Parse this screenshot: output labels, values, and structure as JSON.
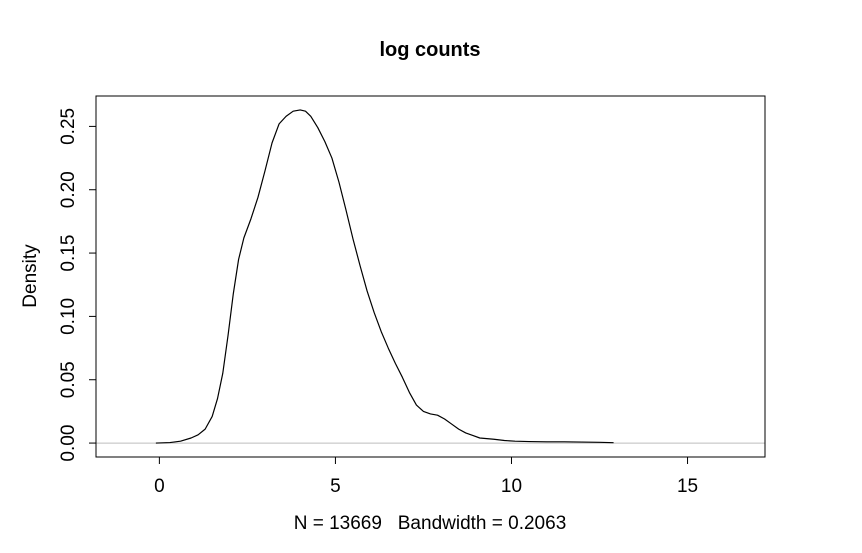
{
  "chart_data": {
    "type": "line",
    "title": "log counts",
    "xlabel": "N = 13669   Bandwidth = 0.2063",
    "ylabel": "Density",
    "xlim": [
      -1.8,
      17.2
    ],
    "ylim": [
      -0.011,
      0.274
    ],
    "x_ticks": [
      0,
      5,
      10,
      15
    ],
    "x_tick_labels": [
      "0",
      "5",
      "10",
      "15"
    ],
    "y_ticks": [
      0.0,
      0.05,
      0.1,
      0.15,
      0.2,
      0.25
    ],
    "y_tick_labels": [
      "0.00",
      "0.05",
      "0.10",
      "0.15",
      "0.20",
      "0.25"
    ],
    "zero_line": {
      "y": 0,
      "color": "#bebebe"
    },
    "grid": false,
    "legend": "none",
    "colors": {
      "line": "#000000",
      "zero_line": "#bebebe",
      "axis": "#000000"
    },
    "series": [
      {
        "x": [
          -0.1,
          0.3,
          0.6,
          0.9,
          1.1,
          1.3,
          1.5,
          1.65,
          1.8,
          1.95,
          2.1,
          2.25,
          2.4,
          2.6,
          2.8,
          3.0,
          3.2,
          3.4,
          3.6,
          3.8,
          4.0,
          4.15,
          4.3,
          4.5,
          4.7,
          4.9,
          5.1,
          5.3,
          5.5,
          5.7,
          5.9,
          6.1,
          6.3,
          6.5,
          6.7,
          6.9,
          7.1,
          7.3,
          7.5,
          7.7,
          7.9,
          8.1,
          8.3,
          8.5,
          8.7,
          8.9,
          9.1,
          9.3,
          9.5,
          9.8,
          10.1,
          10.5,
          11.0,
          11.5,
          12.0,
          12.5,
          12.9
        ],
        "y": [
          0.0,
          0.0004,
          0.0015,
          0.004,
          0.0065,
          0.011,
          0.021,
          0.035,
          0.055,
          0.085,
          0.118,
          0.145,
          0.162,
          0.177,
          0.194,
          0.215,
          0.237,
          0.252,
          0.258,
          0.262,
          0.263,
          0.262,
          0.258,
          0.249,
          0.238,
          0.225,
          0.206,
          0.184,
          0.161,
          0.14,
          0.12,
          0.103,
          0.088,
          0.075,
          0.063,
          0.052,
          0.04,
          0.03,
          0.025,
          0.023,
          0.022,
          0.019,
          0.015,
          0.011,
          0.008,
          0.006,
          0.004,
          0.0035,
          0.003,
          0.002,
          0.0015,
          0.0012,
          0.001,
          0.001,
          0.0008,
          0.0006,
          0.0003
        ]
      }
    ]
  }
}
